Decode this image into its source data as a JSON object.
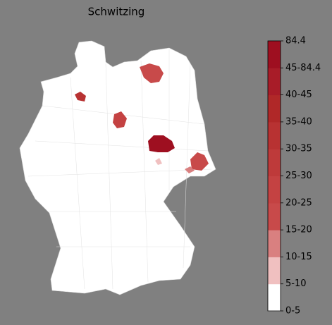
{
  "title": "Schwitzing",
  "legend": {
    "labels": [
      "0-5",
      "5-10",
      "10-15",
      "15-20",
      "20-25",
      "25-30",
      "30-35",
      "35-40",
      "40-45",
      "45-84.4",
      "84.4"
    ],
    "colors": [
      "#ffffff",
      "#f0c0c0",
      "#d98080",
      "#c84a4a",
      "#c44242",
      "#be3a3a",
      "#b83232",
      "#b02828",
      "#a81c28",
      "#9e0f20"
    ]
  }
}
